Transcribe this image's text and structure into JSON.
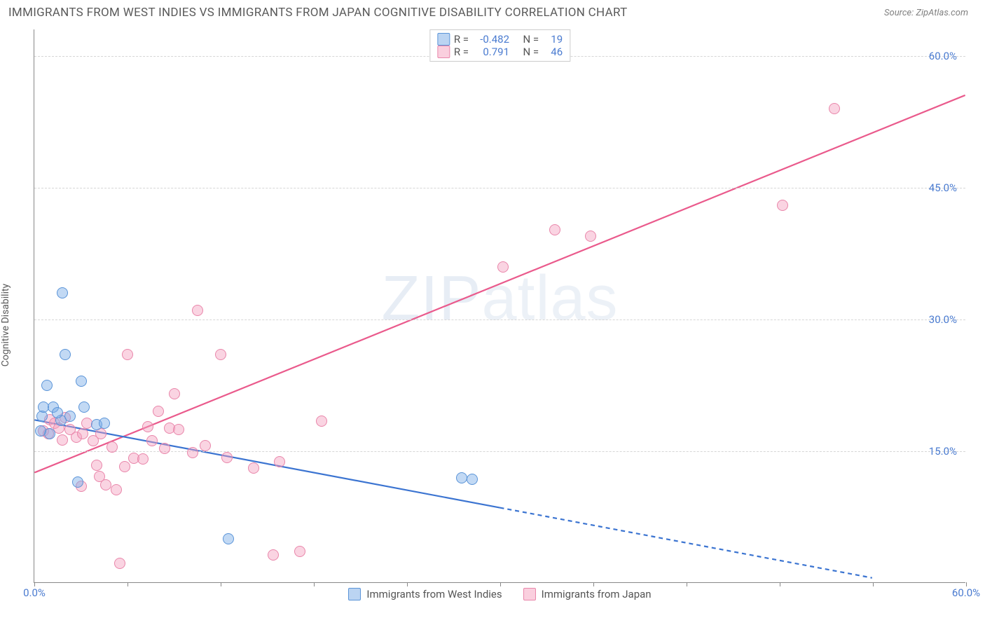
{
  "header": {
    "title": "IMMIGRANTS FROM WEST INDIES VS IMMIGRANTS FROM JAPAN COGNITIVE DISABILITY CORRELATION CHART",
    "source_prefix": "Source: ",
    "source_name": "ZipAtlas.com"
  },
  "watermark": {
    "bold": "ZIP",
    "thin": "atlas"
  },
  "chart": {
    "type": "scatter",
    "ylabel": "Cognitive Disability",
    "xlim": [
      0,
      60
    ],
    "ylim": [
      0,
      63
    ],
    "xtick_label_min": "0.0%",
    "xtick_label_max": "60.0%",
    "xtick_positions": [
      0,
      6,
      12,
      18,
      24,
      30,
      36,
      42,
      48,
      54,
      60
    ],
    "yticks": [
      {
        "v": 15,
        "label": "15.0%"
      },
      {
        "v": 30,
        "label": "30.0%"
      },
      {
        "v": 45,
        "label": "45.0%"
      },
      {
        "v": 60,
        "label": "60.0%"
      }
    ],
    "grid_color": "#d6d6d6",
    "background": "#ffffff",
    "marker_radius": 8,
    "series": {
      "blue": {
        "label": "Immigrants from West Indies",
        "fill": "rgba(120,170,230,0.45)",
        "stroke": "#5a94d8",
        "line_color": "#3b74d1",
        "R": "-0.482",
        "N": "19",
        "trend": {
          "x1": 0,
          "y1": 18.5,
          "x2_solid": 30,
          "y2_solid": 8.5,
          "x2_dash": 54,
          "y2_dash": 0.5
        },
        "points": [
          [
            0.5,
            19
          ],
          [
            0.6,
            20
          ],
          [
            0.8,
            22.5
          ],
          [
            1.0,
            17
          ],
          [
            1.2,
            20
          ],
          [
            1.7,
            18.5
          ],
          [
            1.8,
            33
          ],
          [
            2.0,
            26
          ],
          [
            2.3,
            19
          ],
          [
            2.8,
            11.5
          ],
          [
            3.0,
            23
          ],
          [
            3.2,
            20
          ],
          [
            4.0,
            18
          ],
          [
            4.5,
            18.2
          ],
          [
            12.5,
            5
          ],
          [
            27.5,
            12
          ],
          [
            28.2,
            11.8
          ],
          [
            0.4,
            17.3
          ],
          [
            1.5,
            19.4
          ]
        ]
      },
      "pink": {
        "label": "Immigrants from Japan",
        "fill": "rgba(245,160,190,0.45)",
        "stroke": "#e986aa",
        "line_color": "#ea5a8c",
        "R": "0.791",
        "N": "46",
        "trend": {
          "x1": 0,
          "y1": 12.5,
          "x2_solid": 60,
          "y2_solid": 55.5,
          "x2_dash": 60,
          "y2_dash": 55.5
        },
        "points": [
          [
            0.6,
            17.3
          ],
          [
            0.9,
            17
          ],
          [
            1.0,
            18.6
          ],
          [
            1.3,
            18.2
          ],
          [
            1.6,
            17.6
          ],
          [
            1.8,
            16.3
          ],
          [
            2.0,
            18.8
          ],
          [
            2.3,
            17.5
          ],
          [
            2.7,
            16.6
          ],
          [
            3.1,
            17
          ],
          [
            3.4,
            18.2
          ],
          [
            3.8,
            16.2
          ],
          [
            4.0,
            13.4
          ],
          [
            4.2,
            12.1
          ],
          [
            4.6,
            11.2
          ],
          [
            5.0,
            15.5
          ],
          [
            5.3,
            10.6
          ],
          [
            5.8,
            13.2
          ],
          [
            6.0,
            26
          ],
          [
            6.4,
            14.2
          ],
          [
            7.0,
            14.1
          ],
          [
            7.3,
            17.8
          ],
          [
            7.6,
            16.2
          ],
          [
            8.0,
            19.5
          ],
          [
            8.4,
            15.3
          ],
          [
            8.7,
            17.6
          ],
          [
            9.0,
            21.5
          ],
          [
            9.3,
            17.5
          ],
          [
            10.2,
            14.8
          ],
          [
            10.5,
            31
          ],
          [
            11.0,
            15.6
          ],
          [
            12.0,
            26
          ],
          [
            12.4,
            14.3
          ],
          [
            14.1,
            13.1
          ],
          [
            15.4,
            3.2
          ],
          [
            15.8,
            13.8
          ],
          [
            17.1,
            3.6
          ],
          [
            18.5,
            18.4
          ],
          [
            5.5,
            2.2
          ],
          [
            30.2,
            36
          ],
          [
            33.5,
            40.2
          ],
          [
            35.8,
            39.5
          ],
          [
            48.2,
            43
          ],
          [
            51.5,
            54
          ],
          [
            3.0,
            11
          ],
          [
            4.3,
            17
          ]
        ]
      }
    },
    "legend_top": {
      "r_label": "R =",
      "n_label": "N ="
    }
  }
}
